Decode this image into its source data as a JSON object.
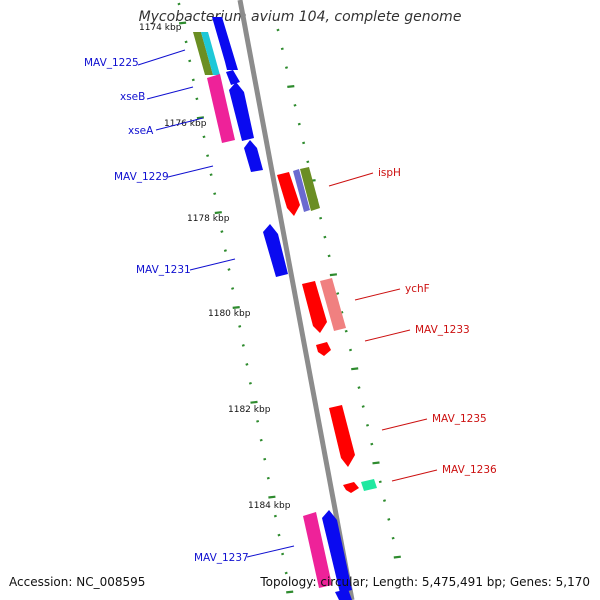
{
  "title": "Mycobacterium avium 104, complete genome",
  "footer": {
    "accession": "Accession: NC_008595",
    "summary": "Topology: circular; Length: 5,475,491 bp; Genes: 5,170"
  },
  "colors": {
    "backbone": "#8c8c8c",
    "tick": "#2e8b2e",
    "label_left": "#1010d0",
    "label_right": "#cc1010"
  },
  "kbp_labels": [
    "1174 kbp",
    "1176 kbp",
    "1178 kbp",
    "1180 kbp",
    "1182 kbp",
    "1184 kbp"
  ],
  "gene_labels_left": [
    "MAV_1225",
    "xseB",
    "xseA",
    "MAV_1229",
    "MAV_1231",
    "MAV_1237"
  ],
  "gene_labels_right": [
    "ispH",
    "ychF",
    "MAV_1233",
    "MAV_1235",
    "MAV_1236"
  ]
}
